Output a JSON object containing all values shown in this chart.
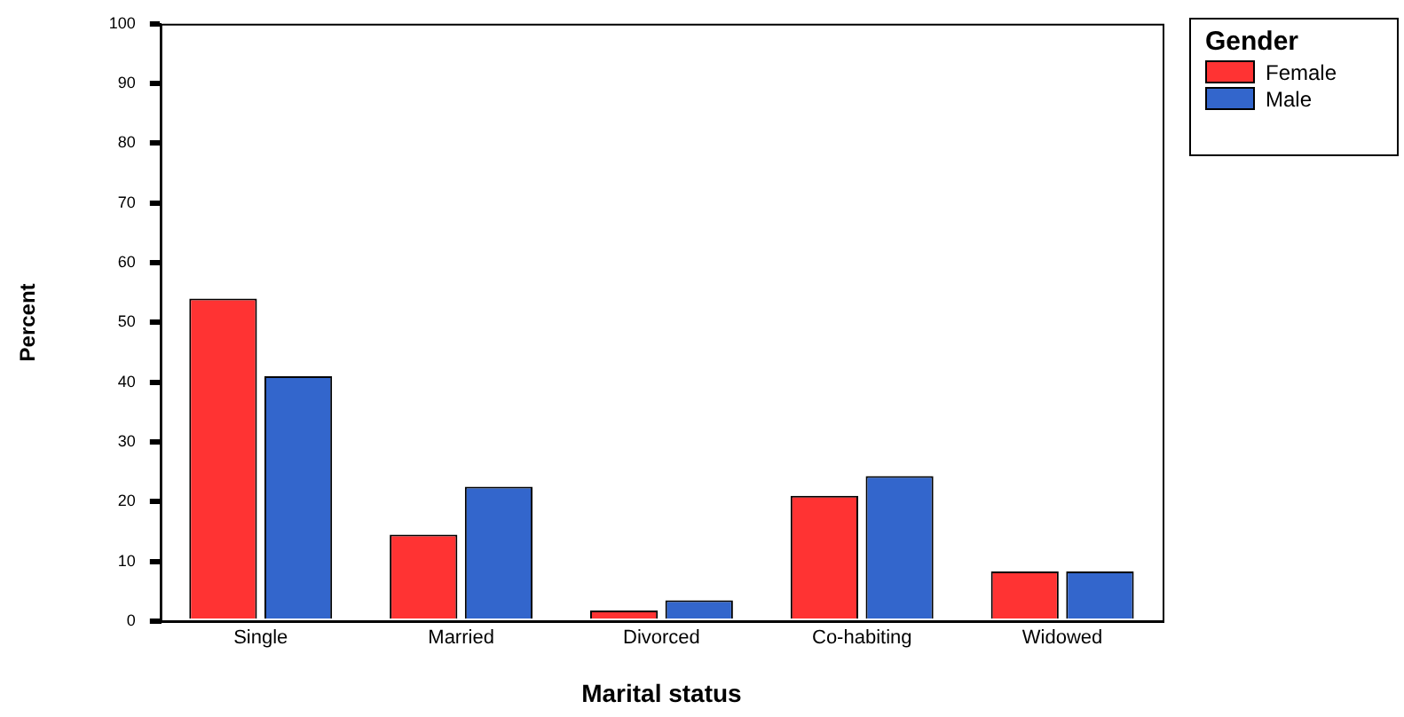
{
  "chart_data": {
    "type": "bar",
    "xlabel": "Marital status",
    "ylabel": "Percent",
    "legend_title": "Gender",
    "legend": "top right",
    "grid": false,
    "categories": [
      "Single",
      "Married",
      "Divorced",
      "Co-habiting",
      "Widowed"
    ],
    "ylim": [
      0,
      100
    ],
    "yticks": [
      0,
      10,
      20,
      30,
      40,
      50,
      60,
      70,
      80,
      90,
      100
    ],
    "series": [
      {
        "name": "Female",
        "color": "#ff3333",
        "values": [
          54,
          14.5,
          1.8,
          21,
          8.3
        ]
      },
      {
        "name": "Male",
        "color": "#3366cc",
        "values": [
          41,
          22.5,
          3.5,
          24.3,
          8.3
        ]
      }
    ]
  }
}
